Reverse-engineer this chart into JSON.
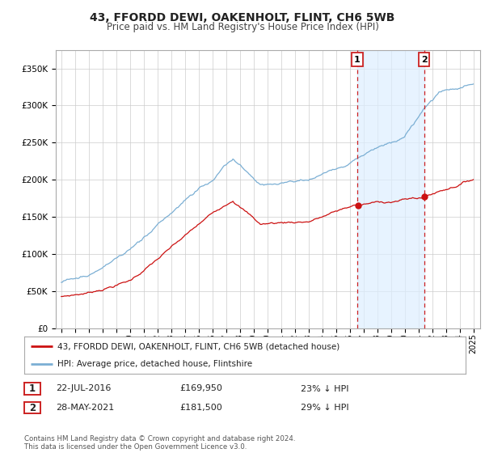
{
  "title": "43, FFORDD DEWI, OAKENHOLT, FLINT, CH6 5WB",
  "subtitle": "Price paid vs. HM Land Registry's House Price Index (HPI)",
  "title_fontsize": 10,
  "subtitle_fontsize": 8.5,
  "ylabel_ticks": [
    "£0",
    "£50K",
    "£100K",
    "£150K",
    "£200K",
    "£250K",
    "£300K",
    "£350K"
  ],
  "ytick_values": [
    0,
    50000,
    100000,
    150000,
    200000,
    250000,
    300000,
    350000
  ],
  "ylim": [
    0,
    375000
  ],
  "hpi_color": "#7bafd4",
  "hpi_fill_color": "#ddeeff",
  "price_color": "#cc1111",
  "shade_color": "#ddeeff",
  "marker1_year": 2016.55,
  "marker2_year": 2021.41,
  "sale1_date": "22-JUL-2016",
  "sale1_price": "£169,950",
  "sale1_pct": "23% ↓ HPI",
  "sale2_date": "28-MAY-2021",
  "sale2_price": "£181,500",
  "sale2_pct": "29% ↓ HPI",
  "legend_label1": "43, FFORDD DEWI, OAKENHOLT, FLINT, CH6 5WB (detached house)",
  "legend_label2": "HPI: Average price, detached house, Flintshire",
  "footnote": "Contains HM Land Registry data © Crown copyright and database right 2024.\nThis data is licensed under the Open Government Licence v3.0.",
  "background_color": "#ffffff",
  "plot_bg_color": "#f0f4f8"
}
